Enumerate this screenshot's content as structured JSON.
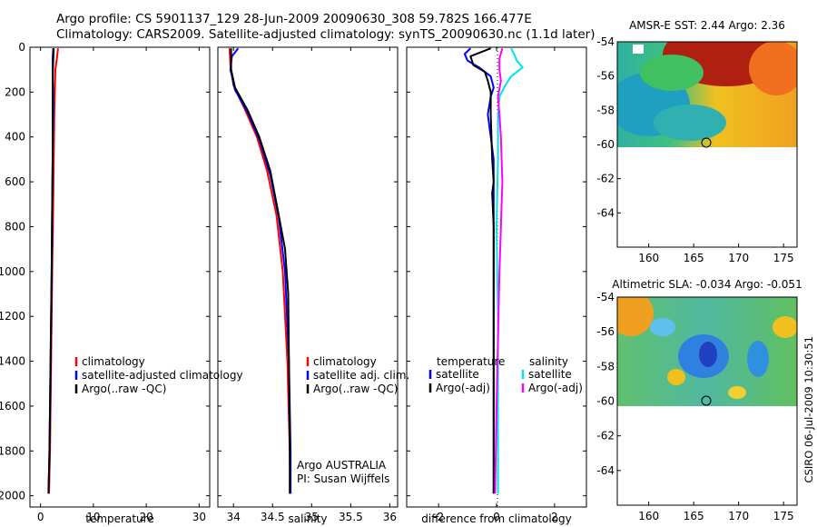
{
  "title": {
    "line1": "Argo profile: CS 5901137_129 28-Jun-2009 20090630_308 59.782S 166.477E",
    "line2": "Climatology: CARS2009. Satellite-adjusted climatology: synTS_20090630.nc (1.1d later)"
  },
  "stamp": "CSIRO 06-Jul-2009 10:30:51",
  "colors": {
    "red": "#ff0000",
    "blue": "#0000ff",
    "black": "#000000",
    "cyan": "#00e5e5",
    "magenta": "#ff00ff"
  },
  "chart_data": [
    {
      "id": "temperature",
      "type": "line",
      "xlabel": "temperature",
      "ylabel": "",
      "xlim": [
        -2,
        32
      ],
      "ylim": [
        2050,
        0
      ],
      "xticks": [
        0,
        10,
        20,
        30
      ],
      "yticks": [
        0,
        200,
        400,
        600,
        800,
        1000,
        1200,
        1400,
        1600,
        1800,
        2000
      ],
      "legend": {
        "position": "lower-middle",
        "entries": [
          "climatology",
          "satellite-adjusted climatology",
          "Argo(..raw -QC)"
        ]
      },
      "series": [
        {
          "name": "climatology",
          "color": "red",
          "x": [
            3.3,
            3.1,
            2.8,
            2.7,
            2.6,
            2.5,
            2.4,
            2.2,
            2.0,
            1.8,
            1.6
          ],
          "y": [
            5,
            50,
            100,
            200,
            300,
            500,
            700,
            1000,
            1400,
            1800,
            1990
          ]
        },
        {
          "name": "satellite-adjusted climatology",
          "color": "blue",
          "x": [
            2.4,
            2.3,
            2.3,
            2.4,
            2.4,
            2.3,
            2.2,
            2.1,
            1.9,
            1.7,
            1.5
          ],
          "y": [
            5,
            50,
            100,
            200,
            300,
            500,
            700,
            1000,
            1400,
            1800,
            1990
          ]
        },
        {
          "name": "Argo(..raw -QC)",
          "color": "black",
          "x": [
            2.5,
            2.4,
            2.3,
            2.3,
            2.3,
            2.2,
            2.1,
            1.9,
            1.7,
            1.5
          ],
          "y": [
            5,
            60,
            150,
            300,
            500,
            700,
            1000,
            1400,
            1800,
            1990
          ]
        }
      ]
    },
    {
      "id": "salinity",
      "type": "line",
      "xlabel": "salinity",
      "ylabel": "",
      "xlim": [
        33.8,
        36.1
      ],
      "ylim": [
        2050,
        0
      ],
      "xticks": [
        34,
        34.5,
        35,
        35.5,
        36
      ],
      "legend": {
        "position": "lower-right",
        "entries": [
          "climatology",
          "satellite adj. clim.",
          "Argo(..raw -QC)"
        ]
      },
      "annotation": {
        "line1": "Argo AUSTRALIA",
        "line2": "PI: Susan Wijffels"
      },
      "series": [
        {
          "name": "climatology",
          "color": "red",
          "x": [
            33.95,
            33.96,
            34.0,
            34.15,
            34.3,
            34.43,
            34.55,
            34.63,
            34.69,
            34.72,
            34.73
          ],
          "y": [
            5,
            80,
            170,
            280,
            400,
            550,
            750,
            1000,
            1400,
            1800,
            1990
          ]
        },
        {
          "name": "satellite adj. clim.",
          "color": "blue",
          "x": [
            34.06,
            33.98,
            33.96,
            34.02,
            34.18,
            34.34,
            34.47,
            34.58,
            34.66,
            34.71,
            34.73,
            34.73
          ],
          "y": [
            5,
            40,
            100,
            190,
            290,
            420,
            570,
            760,
            1000,
            1400,
            1800,
            1990
          ]
        },
        {
          "name": "Argo(..raw -QC)",
          "color": "black",
          "x": [
            33.97,
            33.97,
            34.02,
            34.18,
            34.33,
            34.47,
            34.58,
            34.66,
            34.7,
            34.71,
            34.72,
            34.72
          ],
          "y": [
            5,
            100,
            180,
            280,
            400,
            550,
            750,
            900,
            1100,
            1400,
            1800,
            1990
          ]
        }
      ]
    },
    {
      "id": "difference",
      "type": "line",
      "xlabel": "difference from climatology",
      "ylabel": "",
      "xlim": [
        -3.1,
        3.1
      ],
      "ylim": [
        2050,
        0
      ],
      "xticks": [
        -2,
        0,
        2
      ],
      "legend": {
        "position": "lower-middle",
        "temperature_header": "temperature",
        "salinity_header": "salinity",
        "entries": [
          "satellite",
          "Argo(-adj)",
          "satellite",
          "Argo(-adj)"
        ]
      },
      "series": [
        {
          "name": "temperature satellite",
          "color": "blue",
          "x": [
            -0.9,
            -1.1,
            -1.0,
            -0.6,
            -0.2,
            -0.1,
            -0.2,
            -0.3,
            -0.1,
            -0.1,
            -0.1,
            -0.1,
            -0.1
          ],
          "y": [
            5,
            30,
            60,
            90,
            130,
            180,
            220,
            300,
            500,
            800,
            1200,
            1600,
            1990
          ]
        },
        {
          "name": "temperature Argo(-adj)",
          "color": "black",
          "x": [
            -0.2,
            -0.9,
            -0.8,
            -0.4,
            -0.3,
            -0.2,
            -0.2,
            -0.15,
            -0.1,
            -0.15,
            -0.1,
            -0.1,
            -0.1,
            -0.1
          ],
          "y": [
            5,
            40,
            80,
            110,
            150,
            200,
            300,
            500,
            600,
            650,
            800,
            1200,
            1600,
            1990
          ]
        },
        {
          "name": "salinity satellite",
          "color": "cyan",
          "x": [
            0.5,
            0.6,
            0.7,
            0.9,
            0.5,
            0.3,
            0.1,
            0.05,
            0.05,
            0.0,
            0.05,
            0.05,
            0.05
          ],
          "y": [
            5,
            30,
            60,
            90,
            130,
            170,
            220,
            300,
            500,
            800,
            1200,
            1600,
            1990
          ]
        },
        {
          "name": "salinity Argo(-adj)",
          "color": "magenta",
          "x": [
            0.2,
            0.1,
            0.1,
            0.15,
            0.05,
            0.1,
            0.15,
            0.2,
            0.15,
            0.1,
            0.05,
            0.0,
            -0.05
          ],
          "y": [
            5,
            50,
            100,
            150,
            220,
            300,
            400,
            600,
            800,
            1000,
            1300,
            1600,
            1990
          ]
        }
      ]
    },
    {
      "id": "sst-map",
      "type": "heatmap",
      "title": "AMSR-E SST: 2.44 Argo: 2.36",
      "xlim": [
        156.5,
        176.5
      ],
      "ylim": [
        -66,
        -54
      ],
      "xticks": [
        160,
        165,
        170,
        175
      ],
      "yticks": [
        -54,
        -56,
        -58,
        -60,
        -62,
        -64
      ],
      "data_lat_range": [
        -60,
        -54
      ],
      "marker": {
        "lon": 166.477,
        "lat": -59.782
      }
    },
    {
      "id": "sla-map",
      "type": "heatmap",
      "title": "Altimetric SLA: -0.034 Argo: -0.051",
      "xlim": [
        156.5,
        176.5
      ],
      "ylim": [
        -66,
        -54
      ],
      "xticks": [
        160,
        165,
        170,
        175
      ],
      "yticks": [
        -54,
        -56,
        -58,
        -60,
        -62,
        -64
      ],
      "data_lat_range": [
        -60,
        -54
      ],
      "marker": {
        "lon": 166.477,
        "lat": -59.782
      }
    }
  ]
}
